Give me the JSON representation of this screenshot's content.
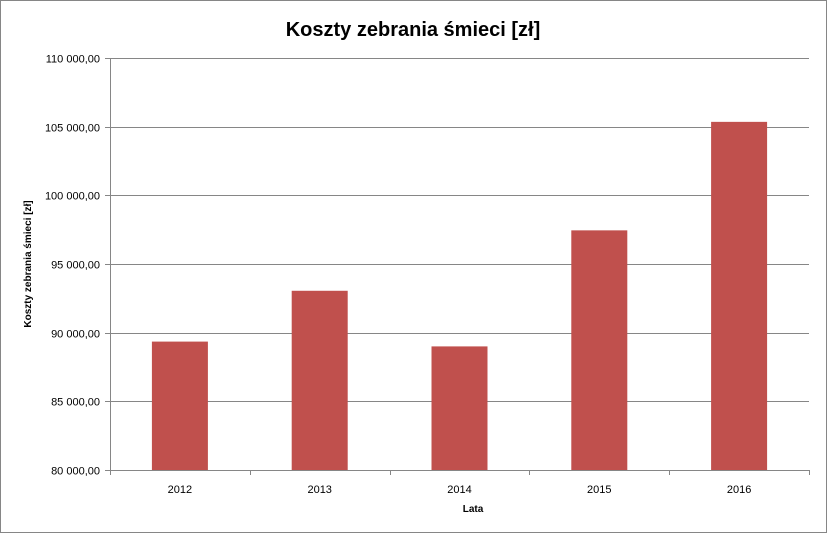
{
  "chart_data": {
    "type": "bar",
    "title": "Koszty zebrania śmieci [zł]",
    "xlabel": "Lata",
    "ylabel": "Koszty zebrania śmieci [zł]",
    "categories": [
      "2012",
      "2013",
      "2014",
      "2015",
      "2016"
    ],
    "values": [
      89350,
      93050,
      89000,
      97450,
      105350
    ],
    "ylim": [
      80000,
      110000
    ],
    "yticks": [
      80000,
      85000,
      90000,
      95000,
      100000,
      105000,
      110000
    ],
    "ytick_labels": [
      "80 000,00",
      "85 000,00",
      "90 000,00",
      "95 000,00",
      "100 000,00",
      "105 000,00",
      "110 000,00"
    ],
    "grid": true,
    "legend": false,
    "colors": {
      "bar": "#c0504d",
      "grid": "#868686",
      "axis": "#868686"
    }
  }
}
